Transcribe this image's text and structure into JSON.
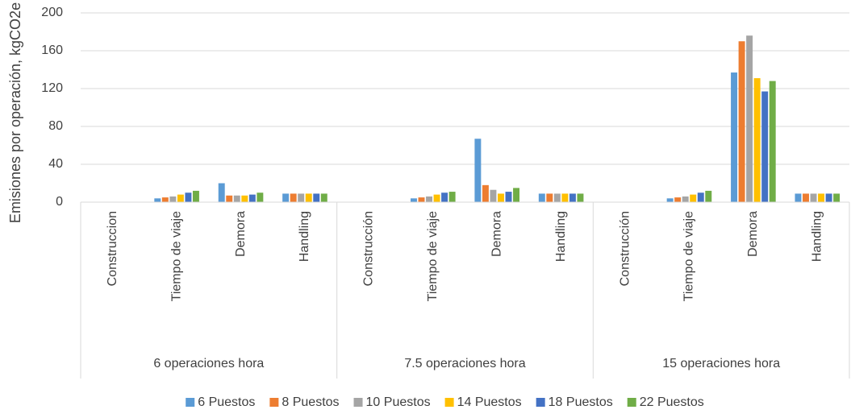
{
  "chart_data": {
    "type": "bar",
    "y_label": "Emisiones por operación, kgCO2e",
    "groups": [
      "6 operaciones hora",
      "7.5 operaciones hora",
      "15 operaciones hora"
    ],
    "categories": [
      "Construccion",
      "Tiempo de viaje",
      "Demora",
      "Handling",
      "Construcción",
      "Tiempo de viaje",
      "Demora",
      "Handling",
      "Construcción",
      "Tiempo de viaje",
      "Demora",
      "Handling"
    ],
    "series": [
      {
        "name": "6 Puestos",
        "color": "#5b9bd5",
        "values": [
          0,
          4,
          20,
          9,
          0,
          4,
          67,
          9,
          0,
          4,
          137,
          9
        ]
      },
      {
        "name": "8 Puestos",
        "color": "#ed7d31",
        "values": [
          0,
          5,
          7,
          9,
          0,
          5,
          18,
          9,
          0,
          5,
          170,
          9
        ]
      },
      {
        "name": "10 Puestos",
        "color": "#a5a5a5",
        "values": [
          0,
          6,
          7,
          9,
          0,
          6,
          13,
          9,
          0,
          6,
          176,
          9
        ]
      },
      {
        "name": "14 Puestos",
        "color": "#ffc000",
        "values": [
          0,
          8,
          7,
          9,
          0,
          8,
          9,
          9,
          0,
          8,
          131,
          9
        ]
      },
      {
        "name": "18 Puestos",
        "color": "#4472c4",
        "values": [
          0,
          10,
          8,
          9,
          0,
          10,
          11,
          9,
          0,
          10,
          117,
          9
        ]
      },
      {
        "name": "22 Puestos",
        "color": "#70ad47",
        "values": [
          0,
          12,
          10,
          9,
          0,
          11,
          15,
          9,
          0,
          12,
          128,
          9
        ]
      }
    ],
    "ylim": [
      0,
      200
    ],
    "yticks": [
      0,
      40,
      80,
      120,
      160,
      200
    ],
    "grid": true,
    "legend": "bottom"
  }
}
